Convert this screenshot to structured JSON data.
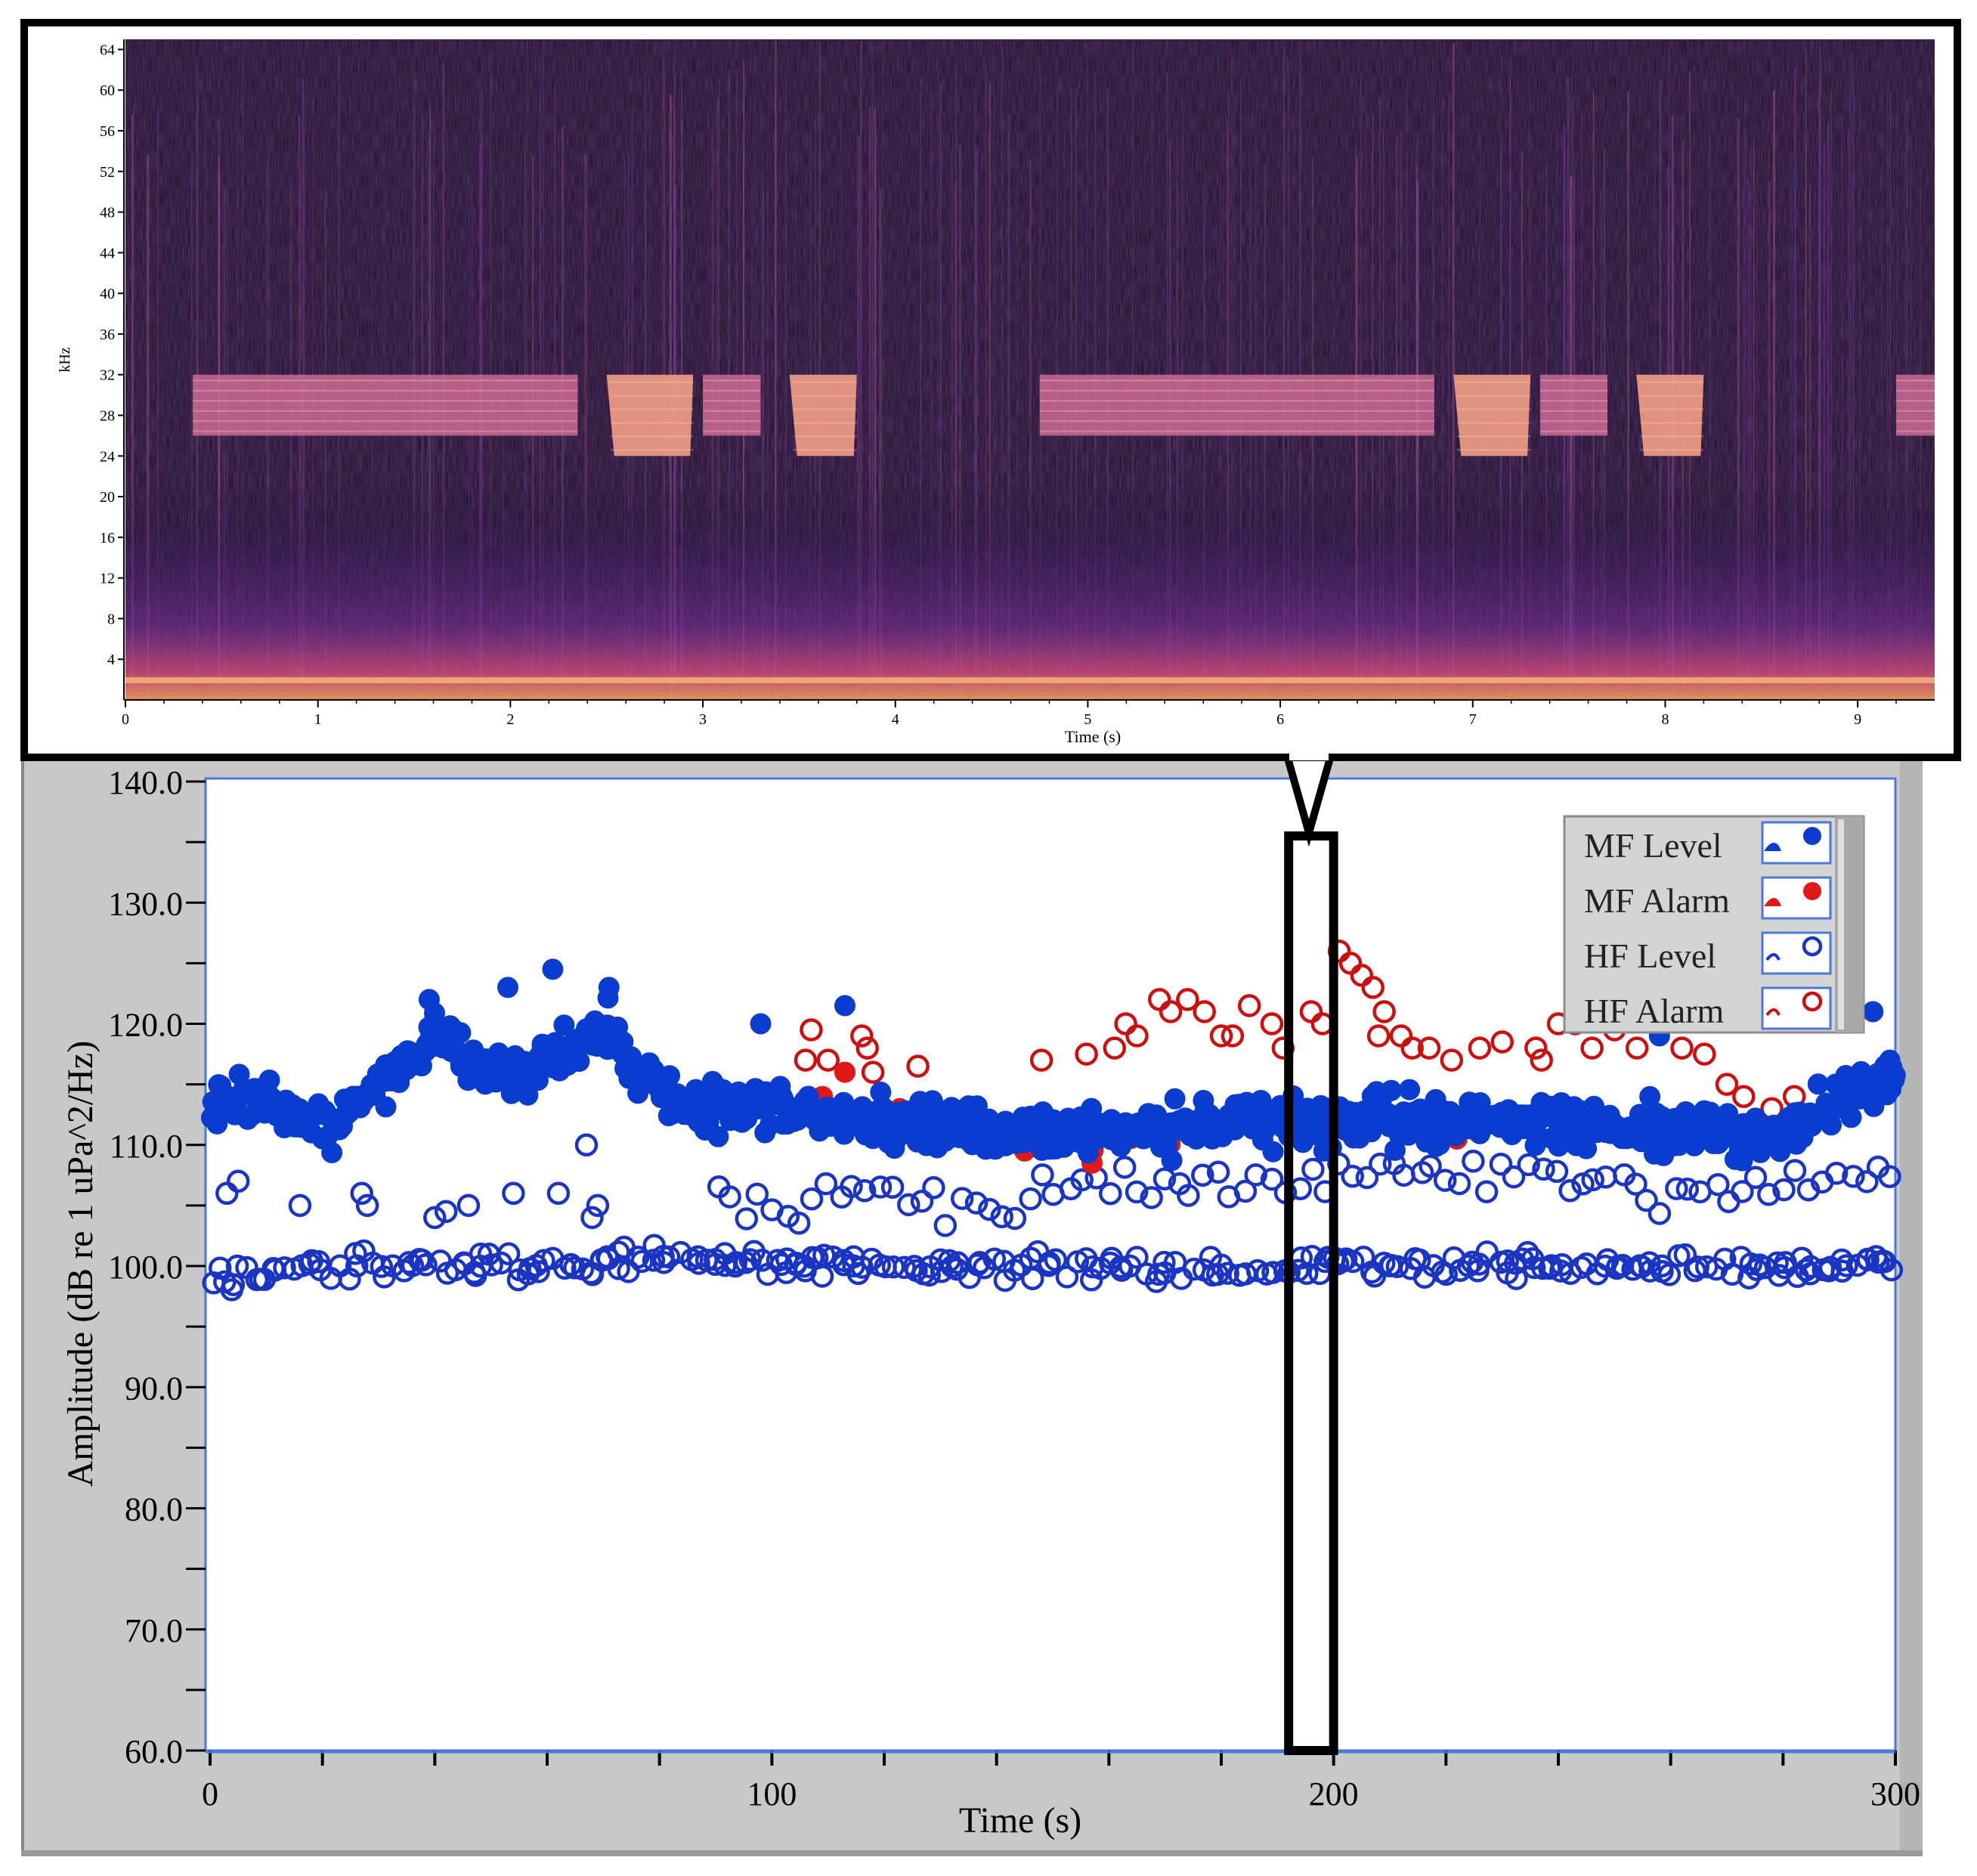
{
  "colors": {
    "mf_level": "#0a3ccf",
    "mf_alarm": "#e01818",
    "hf_level": "#1a34c4",
    "hf_alarm": "#cc1010",
    "panel_gray": "#c8c8c8",
    "spectrogram_background": "#1a0b26"
  },
  "chart_data": [
    {
      "type": "heatmap",
      "title": "",
      "xlabel": "Time (s)",
      "ylabel": "kHz",
      "xlim": [
        0,
        9.4
      ],
      "ylim": [
        0,
        65
      ],
      "x_ticks": [
        "0",
        "1",
        "2",
        "3",
        "4",
        "5",
        "6",
        "7",
        "8",
        "9"
      ],
      "y_ticks": [
        "4",
        "8",
        "12",
        "16",
        "20",
        "24",
        "28",
        "32",
        "36",
        "40",
        "44",
        "48",
        "52",
        "56",
        "60",
        "64"
      ],
      "bands": [
        {
          "t_start": 0.35,
          "t_end": 2.35,
          "f_low": 26,
          "f_high": 32
        },
        {
          "t_start": 2.5,
          "t_end": 2.95,
          "f_low": 24,
          "f_high": 32
        },
        {
          "t_start": 3.0,
          "t_end": 3.3,
          "f_low": 26,
          "f_high": 32
        },
        {
          "t_start": 3.45,
          "t_end": 3.8,
          "f_low": 24,
          "f_high": 32
        },
        {
          "t_start": 4.75,
          "t_end": 6.8,
          "f_low": 26,
          "f_high": 32
        },
        {
          "t_start": 6.9,
          "t_end": 7.3,
          "f_low": 24,
          "f_high": 32
        },
        {
          "t_start": 7.35,
          "t_end": 7.7,
          "f_low": 26,
          "f_high": 32
        },
        {
          "t_start": 7.85,
          "t_end": 8.2,
          "f_low": 24,
          "f_high": 32
        },
        {
          "t_start": 9.2,
          "t_end": 9.4,
          "f_low": 26,
          "f_high": 32
        }
      ]
    },
    {
      "type": "scatter",
      "title": "",
      "xlabel": "Time (s)",
      "ylabel": "Amplitude (dB re 1 uPa^2/Hz)",
      "xlim": [
        0,
        300
      ],
      "ylim": [
        60,
        140
      ],
      "x_ticks": [
        "0",
        "100",
        "200",
        "300"
      ],
      "y_ticks": [
        "60.0",
        "70.0",
        "80.0",
        "90.0",
        "100.0",
        "110.0",
        "120.0",
        "130.0",
        "140.0"
      ],
      "legend_position": "top-right",
      "highlight_window": {
        "x_start": 192,
        "x_end": 200
      },
      "series": [
        {
          "name": "MF Level",
          "marker": "filled-circle",
          "trend": [
            [
              0,
              113
            ],
            [
              10,
              114
            ],
            [
              20,
              111
            ],
            [
              30,
              115
            ],
            [
              40,
              119
            ],
            [
              50,
              115
            ],
            [
              60,
              117
            ],
            [
              70,
              120
            ],
            [
              80,
              114
            ],
            [
              90,
              113
            ],
            [
              100,
              113
            ],
            [
              120,
              112
            ],
            [
              140,
              111
            ],
            [
              160,
              111
            ],
            [
              180,
              112
            ],
            [
              200,
              112
            ],
            [
              220,
              112
            ],
            [
              240,
              112
            ],
            [
              260,
              111
            ],
            [
              280,
              111
            ],
            [
              300,
              116
            ]
          ],
          "spread": 3,
          "outliers": [
            [
              61,
              124.5
            ],
            [
              53,
              123
            ],
            [
              71,
              123
            ],
            [
              39,
              122
            ],
            [
              98,
              120
            ],
            [
              113,
              121.5
            ],
            [
              296,
              121
            ],
            [
              299,
              117
            ],
            [
              258,
              119
            ]
          ]
        },
        {
          "name": "MF Alarm",
          "marker": "filled-circle",
          "trend": [
            [
              107,
              113
            ],
            [
              120,
              113
            ],
            [
              140,
              110
            ],
            [
              160,
              109
            ],
            [
              180,
              112
            ],
            [
              200,
              112
            ],
            [
              220,
              110
            ]
          ],
          "spread": 2,
          "outliers": [
            [
              109,
              114
            ],
            [
              113,
              116
            ],
            [
              145,
              109.5
            ],
            [
              157,
              108.5
            ],
            [
              168,
              111
            ]
          ]
        },
        {
          "name": "HF Level",
          "marker": "open-circle",
          "trend": [
            [
              0,
              99
            ],
            [
              20,
              100
            ],
            [
              40,
              100
            ],
            [
              60,
              100
            ],
            [
              80,
              101
            ],
            [
              100,
              100
            ],
            [
              120,
              100
            ],
            [
              140,
              100
            ],
            [
              160,
              100
            ],
            [
              180,
              99.5
            ],
            [
              200,
              100
            ],
            [
              220,
              100
            ],
            [
              240,
              100
            ],
            [
              260,
              100
            ],
            [
              280,
              100
            ],
            [
              300,
              100
            ]
          ],
          "upper_trend": [
            [
              90,
              105
            ],
            [
              120,
              106
            ],
            [
              140,
              105
            ],
            [
              160,
              107
            ],
            [
              180,
              106
            ],
            [
              200,
              108
            ],
            [
              220,
              107
            ],
            [
              240,
              107
            ],
            [
              260,
              106
            ],
            [
              280,
              107
            ],
            [
              300,
              108
            ]
          ],
          "spread": 1.5,
          "outliers": [
            [
              3,
              106
            ],
            [
              5,
              107
            ],
            [
              16,
              105
            ],
            [
              27,
              106
            ],
            [
              28,
              105
            ],
            [
              40,
              104
            ],
            [
              42,
              104.5
            ],
            [
              46,
              105
            ],
            [
              54,
              106
            ],
            [
              62,
              106
            ],
            [
              68,
              104
            ],
            [
              69,
              105
            ],
            [
              67,
              110
            ]
          ]
        },
        {
          "name": "HF Alarm",
          "marker": "open-circle",
          "points": [
            [
              106,
              117
            ],
            [
              107,
              119.5
            ],
            [
              110,
              117
            ],
            [
              116,
              119
            ],
            [
              117,
              118
            ],
            [
              118,
              116
            ],
            [
              126,
              116.5
            ],
            [
              148,
              117
            ],
            [
              156,
              117.5
            ],
            [
              161,
              118
            ],
            [
              163,
              120
            ],
            [
              165,
              119
            ],
            [
              169,
              122
            ],
            [
              171,
              121
            ],
            [
              174,
              122
            ],
            [
              177,
              121
            ],
            [
              180,
              119
            ],
            [
              182,
              119
            ],
            [
              185,
              121.5
            ],
            [
              189,
              120
            ],
            [
              191,
              118
            ],
            [
              196,
              121
            ],
            [
              198,
              120
            ],
            [
              201,
              126
            ],
            [
              203,
              125
            ],
            [
              205,
              124
            ],
            [
              207,
              123
            ],
            [
              208,
              119
            ],
            [
              209,
              121
            ],
            [
              212,
              119
            ],
            [
              214,
              118
            ],
            [
              217,
              118
            ],
            [
              221,
              117
            ],
            [
              226,
              118
            ],
            [
              230,
              118.5
            ],
            [
              236,
              118
            ],
            [
              237,
              117
            ],
            [
              240,
              120
            ],
            [
              243,
              120
            ],
            [
              246,
              118
            ],
            [
              250,
              119.5
            ],
            [
              254,
              118
            ],
            [
              262,
              118
            ],
            [
              266,
              117.5
            ],
            [
              270,
              115
            ],
            [
              273,
              114
            ],
            [
              278,
              113
            ],
            [
              282,
              114
            ]
          ]
        }
      ]
    }
  ]
}
